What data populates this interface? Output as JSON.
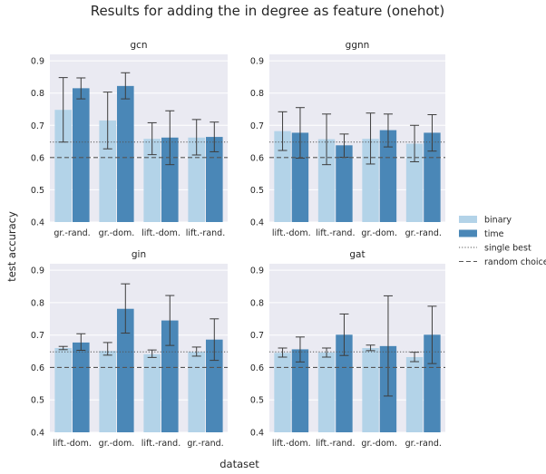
{
  "figure": {
    "title": "Results for adding the in degree as feature (onehot)",
    "xlabel": "dataset",
    "ylabel": "test accuracy"
  },
  "legend": {
    "placement": "right",
    "entries": [
      {
        "label": "binary",
        "kind": "patch",
        "color": "#b3d3e8"
      },
      {
        "label": "time",
        "kind": "patch",
        "color": "#4a87b7"
      },
      {
        "label": "single best",
        "kind": "dotted-line",
        "color": "#555555"
      },
      {
        "label": "random choice",
        "kind": "dashed-line",
        "color": "#555555"
      }
    ]
  },
  "colors": {
    "panel_bg": "#eaeaf2",
    "grid": "#ffffff",
    "binary": "#b3d3e8",
    "time": "#4a87b7",
    "errorbar": "#3d3d3d",
    "reference": "#555555"
  },
  "chart_data": [
    {
      "type": "bar",
      "title": "gcn",
      "ylim": [
        0.4,
        0.92
      ],
      "yticks": [
        "0.4",
        "0.5",
        "0.6",
        "0.7",
        "0.8",
        "0.9"
      ],
      "categories": [
        "gr.-rand.",
        "gr.-dom.",
        "lift.-dom.",
        "lift.-rand."
      ],
      "series": [
        {
          "name": "binary",
          "values": [
            0.748,
            0.715,
            0.658,
            0.662
          ],
          "err_low": [
            0.648,
            0.627,
            0.609,
            0.608
          ],
          "err_high": [
            0.848,
            0.803,
            0.708,
            0.718
          ]
        },
        {
          "name": "time",
          "values": [
            0.815,
            0.822,
            0.662,
            0.664
          ],
          "err_low": [
            0.782,
            0.782,
            0.578,
            0.618
          ],
          "err_high": [
            0.847,
            0.863,
            0.745,
            0.71
          ]
        }
      ],
      "single_best": 0.648,
      "random_choice": 0.6
    },
    {
      "type": "bar",
      "title": "ggnn",
      "ylim": [
        0.4,
        0.92
      ],
      "yticks": [
        "0.4",
        "0.5",
        "0.6",
        "0.7",
        "0.8",
        "0.9"
      ],
      "categories": [
        "lift.-dom.",
        "lift.-rand.",
        "gr.-dom.",
        "gr.-rand."
      ],
      "series": [
        {
          "name": "binary",
          "values": [
            0.682,
            0.657,
            0.658,
            0.643
          ],
          "err_low": [
            0.622,
            0.578,
            0.58,
            0.587
          ],
          "err_high": [
            0.742,
            0.735,
            0.738,
            0.7
          ]
        },
        {
          "name": "time",
          "values": [
            0.677,
            0.638,
            0.685,
            0.677
          ],
          "err_low": [
            0.598,
            0.601,
            0.633,
            0.62
          ],
          "err_high": [
            0.755,
            0.673,
            0.735,
            0.733
          ]
        }
      ],
      "single_best": 0.648,
      "random_choice": 0.6
    },
    {
      "type": "bar",
      "title": "gin",
      "ylim": [
        0.4,
        0.92
      ],
      "yticks": [
        "0.4",
        "0.5",
        "0.6",
        "0.7",
        "0.8",
        "0.9"
      ],
      "categories": [
        "lift.-dom.",
        "gr.-dom.",
        "lift.-rand.",
        "gr.-rand."
      ],
      "series": [
        {
          "name": "binary",
          "values": [
            0.66,
            0.651,
            0.641,
            0.648
          ],
          "err_low": [
            0.655,
            0.638,
            0.631,
            0.635
          ],
          "err_high": [
            0.665,
            0.677,
            0.654,
            0.663
          ]
        },
        {
          "name": "time",
          "values": [
            0.677,
            0.781,
            0.745,
            0.686
          ],
          "err_low": [
            0.653,
            0.706,
            0.668,
            0.622
          ],
          "err_high": [
            0.704,
            0.858,
            0.822,
            0.75
          ]
        }
      ],
      "single_best": 0.648,
      "random_choice": 0.6
    },
    {
      "type": "bar",
      "title": "gat",
      "ylim": [
        0.4,
        0.92
      ],
      "yticks": [
        "0.4",
        "0.5",
        "0.6",
        "0.7",
        "0.8",
        "0.9"
      ],
      "categories": [
        "lift.-dom.",
        "lift.-rand.",
        "gr.-dom.",
        "gr.-rand."
      ],
      "series": [
        {
          "name": "binary",
          "values": [
            0.645,
            0.646,
            0.66,
            0.632
          ],
          "err_low": [
            0.632,
            0.632,
            0.652,
            0.618
          ],
          "err_high": [
            0.66,
            0.66,
            0.669,
            0.647
          ]
        },
        {
          "name": "time",
          "values": [
            0.656,
            0.701,
            0.666,
            0.701
          ],
          "err_low": [
            0.617,
            0.637,
            0.512,
            0.612
          ],
          "err_high": [
            0.694,
            0.765,
            0.821,
            0.789
          ]
        }
      ],
      "single_best": 0.648,
      "random_choice": 0.6
    }
  ]
}
